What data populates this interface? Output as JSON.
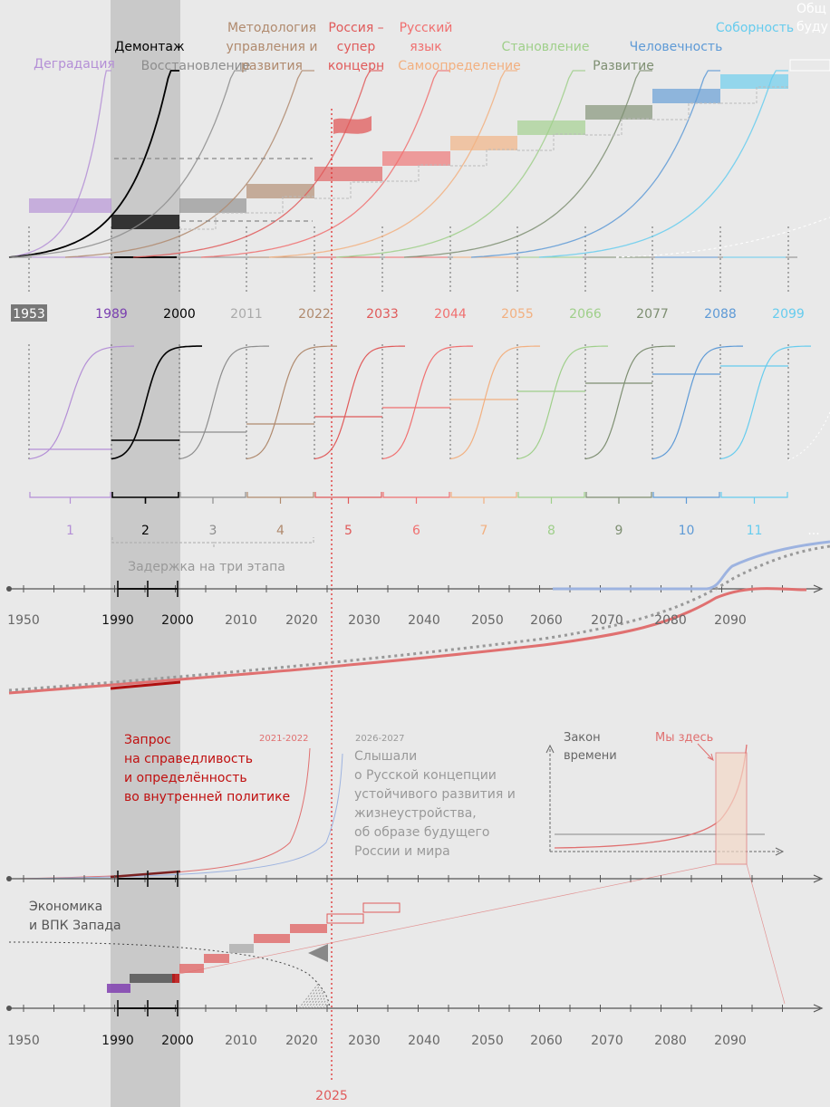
{
  "stages": [
    {
      "num": "1",
      "year": "1953",
      "label": [
        "Деградация"
      ],
      "color": "#b48fd6"
    },
    {
      "num": "2",
      "year": "1989",
      "label": [
        "Демонтаж"
      ],
      "color": "#000000"
    },
    {
      "num": "3",
      "year": "2000",
      "label": [
        "Восстановление"
      ],
      "color": "#8d8d8d"
    },
    {
      "num": "4",
      "year": "2011",
      "label": [
        "Методология",
        "управления и",
        "развития"
      ],
      "color": "#b08a6e"
    },
    {
      "num": "5",
      "year": "2022",
      "label": [
        "Россия –",
        "супер",
        "концерн"
      ],
      "color": "#e05a5a"
    },
    {
      "num": "6",
      "year": "2033",
      "label": [
        "Русский",
        "язык"
      ],
      "color": "#f07070"
    },
    {
      "num": "7",
      "year": "2044",
      "label": [
        "Самоопределение"
      ],
      "color": "#f2b080"
    },
    {
      "num": "8",
      "year": "2055",
      "label": [
        "Становление"
      ],
      "color": "#9fcf8a"
    },
    {
      "num": "9",
      "year": "2066",
      "label": [
        "Развитие"
      ],
      "color": "#7e8f72"
    },
    {
      "num": "10",
      "year": "2077",
      "label": [
        "Человечность"
      ],
      "color": "#5e9ad6"
    },
    {
      "num": "11",
      "year": "2088",
      "label": [
        "Соборность"
      ],
      "color": "#66ccee"
    }
  ],
  "extra_years": [
    "2099"
  ],
  "top_cut_label": [
    "Общ",
    "буду"
  ],
  "delay_label": "Задержка на три этапа",
  "ellipsis": "...",
  "axis_years": [
    "1950",
    "1990",
    "2000",
    "2010",
    "2020",
    "2030",
    "2040",
    "2050",
    "2060",
    "2070",
    "2080",
    "2090"
  ],
  "request_text": [
    "Запрос",
    "на справедливость",
    "и определённость",
    "во внутренней политике"
  ],
  "note_2021": "2021-2022",
  "note_2026": "2026-2027",
  "heard_text": [
    "Слышали",
    "о Русской концепции",
    "устойчивого развития и",
    "жизнеустройства,",
    "об образе будущего",
    "России и мира"
  ],
  "law_label": [
    "Закон",
    "времени"
  ],
  "here_label": "Мы здесь",
  "west_label": [
    "Экономика",
    "и ВПК Запада"
  ],
  "marker_year": "2025",
  "colors": {
    "highlight": "#c8c8c8",
    "red": "#e05a5a",
    "dark_red": "#b01010",
    "blue": "#9db3e0"
  }
}
